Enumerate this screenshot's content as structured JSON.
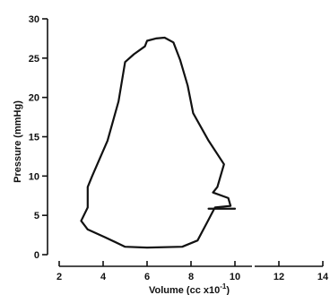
{
  "chart_data": {
    "type": "line",
    "title": "",
    "xlabel": "Volume (cc x10",
    "xlabel_sup": "-1",
    "xlabel_close": ")",
    "ylabel": "Pressure (mmHg)",
    "xlim": [
      2,
      14
    ],
    "ylim": [
      0,
      30
    ],
    "xticks": [
      2,
      4,
      6,
      8,
      10,
      12,
      14
    ],
    "yticks": [
      0,
      5,
      10,
      15,
      20,
      25,
      30
    ],
    "grid": false,
    "axis_color": "#111111",
    "line_color": "#111111",
    "series": [
      {
        "values": [
          {
            "x": 9.05,
            "y": 5.8
          },
          {
            "x": 8.75,
            "y": 4.2
          },
          {
            "x": 8.3,
            "y": 1.8
          },
          {
            "x": 7.6,
            "y": 1.0
          },
          {
            "x": 6.0,
            "y": 0.9
          },
          {
            "x": 5.0,
            "y": 1.0
          },
          {
            "x": 4.1,
            "y": 2.2
          },
          {
            "x": 3.3,
            "y": 3.2
          },
          {
            "x": 3.0,
            "y": 4.3
          },
          {
            "x": 3.3,
            "y": 6.0
          },
          {
            "x": 3.3,
            "y": 8.6
          },
          {
            "x": 3.5,
            "y": 10.0
          },
          {
            "x": 4.2,
            "y": 14.5
          },
          {
            "x": 4.7,
            "y": 19.5
          },
          {
            "x": 5.0,
            "y": 24.5
          },
          {
            "x": 5.4,
            "y": 25.5
          },
          {
            "x": 5.9,
            "y": 26.5
          },
          {
            "x": 6.0,
            "y": 27.2
          },
          {
            "x": 6.4,
            "y": 27.5
          },
          {
            "x": 6.8,
            "y": 27.6
          },
          {
            "x": 7.2,
            "y": 27.0
          },
          {
            "x": 7.5,
            "y": 24.8
          },
          {
            "x": 7.85,
            "y": 21.5
          },
          {
            "x": 8.1,
            "y": 18.0
          },
          {
            "x": 8.8,
            "y": 14.5
          },
          {
            "x": 9.5,
            "y": 11.5
          },
          {
            "x": 9.2,
            "y": 8.6
          },
          {
            "x": 9.0,
            "y": 7.9
          },
          {
            "x": 9.7,
            "y": 7.2
          },
          {
            "x": 9.8,
            "y": 6.2
          },
          {
            "x": 9.1,
            "y": 6.0
          },
          {
            "x": 9.05,
            "y": 5.8
          }
        ]
      }
    ],
    "segments": [
      {
        "x1": 8.8,
        "y1": 5.85,
        "x2": 10.0,
        "y2": 5.85
      }
    ]
  }
}
